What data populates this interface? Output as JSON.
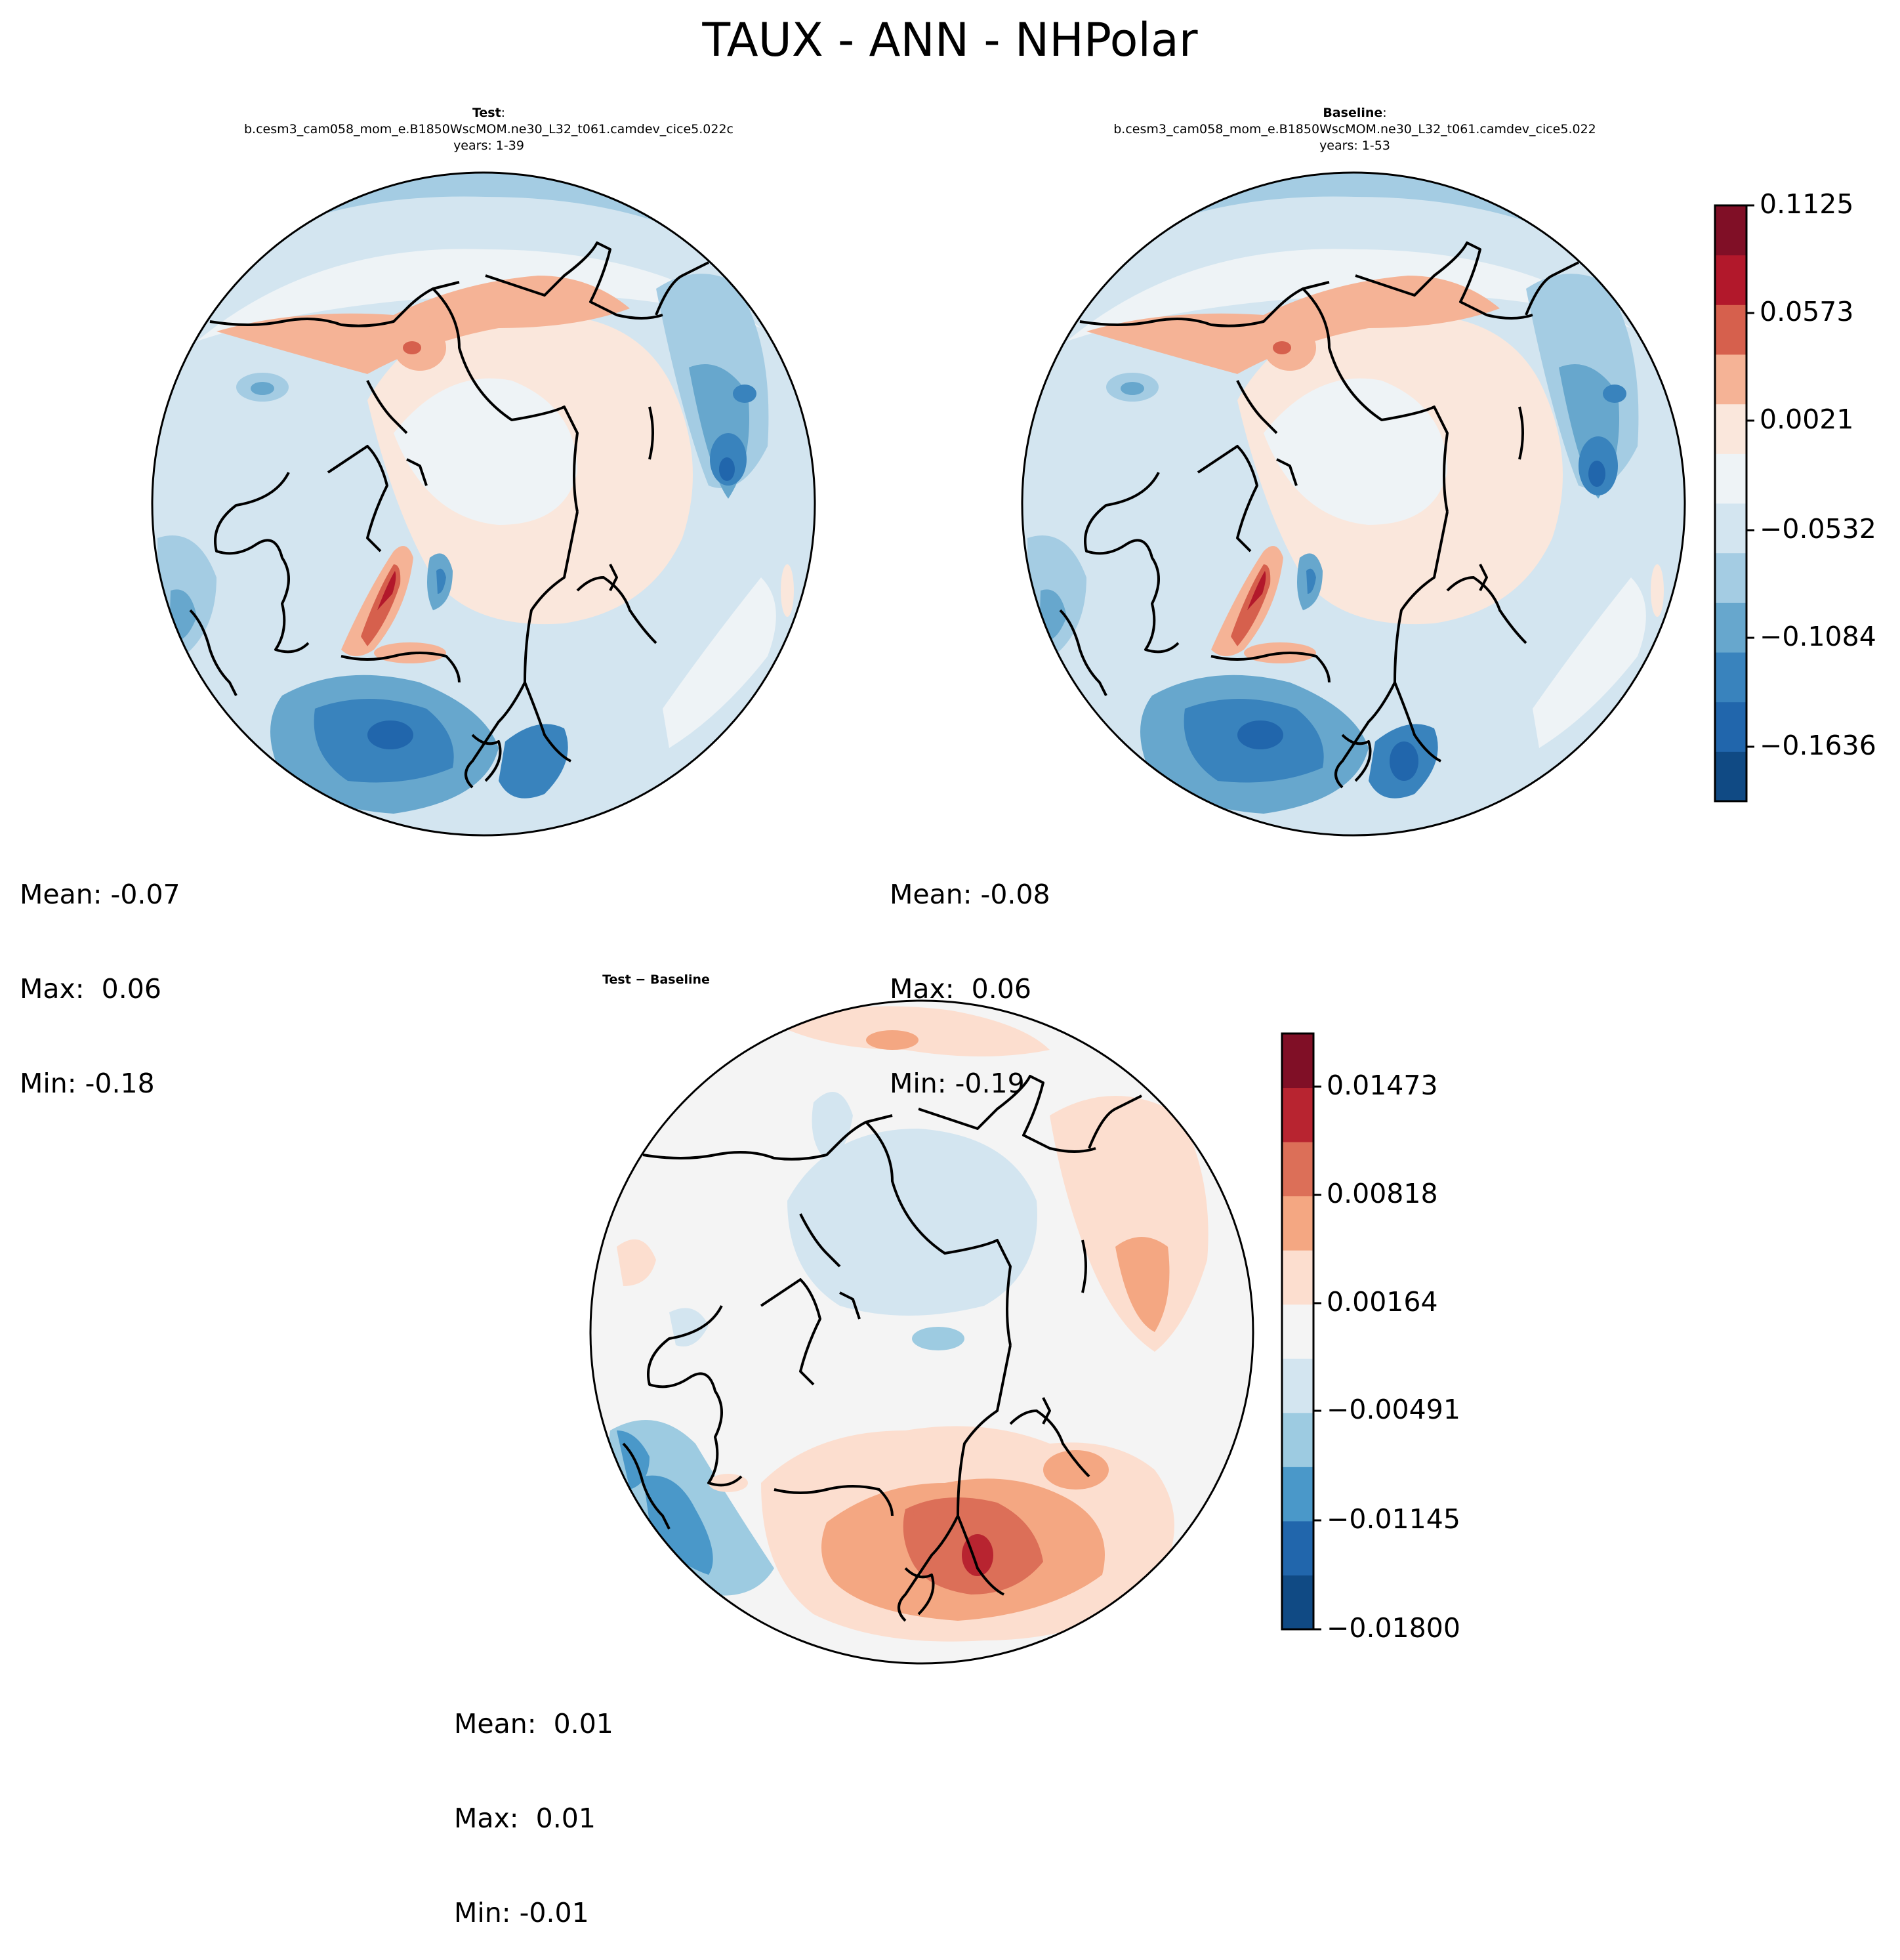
{
  "figure": {
    "title": "TAUX - ANN - NHPolar"
  },
  "panels": {
    "test": {
      "heading": "Test",
      "case": "b.cesm3_cam058_mom_e.B1850WscMOM.ne30_L32_t061.camdev_cice5.022c",
      "years": "years: 1-39",
      "stats": {
        "mean": "Mean: -0.07",
        "max": "Max:  0.06",
        "min": "Min: -0.18"
      }
    },
    "baseline": {
      "heading": "Baseline",
      "case": "b.cesm3_cam058_mom_e.B1850WscMOM.ne30_L32_t061.camdev_cice5.022",
      "years": "years: 1-53",
      "stats": {
        "mean": "Mean: -0.08",
        "max": "Max:  0.06",
        "min": "Min: -0.19"
      }
    },
    "diff": {
      "heading": "Test − Baseline",
      "stats": {
        "mean": "Mean:  0.01",
        "max": "Max:  0.01",
        "min": "Min: -0.01"
      }
    }
  },
  "colorbars": {
    "main": {
      "tick_labels": [
        "0.1125",
        "0.0573",
        "0.0021",
        "−0.0532",
        "−0.1084",
        "−0.1636"
      ],
      "colors": [
        "#104a84",
        "#2166ac",
        "#3983bd",
        "#67a7cd",
        "#a4cce3",
        "#d3e5f0",
        "#eef3f6",
        "#fae7dc",
        "#f5b396",
        "#d6604d",
        "#b2182b",
        "#800f26"
      ]
    },
    "diff": {
      "tick_labels": [
        "0.01473",
        "0.00818",
        "0.00164",
        "−0.00491",
        "−0.01145",
        "−0.01800"
      ],
      "colors": [
        "#104a84",
        "#2166ac",
        "#4a98c9",
        "#9dcbe1",
        "#d3e5f0",
        "#f4f4f4",
        "#fcdecf",
        "#f4a782",
        "#dc6f58",
        "#b82430",
        "#800f26"
      ]
    }
  }
}
